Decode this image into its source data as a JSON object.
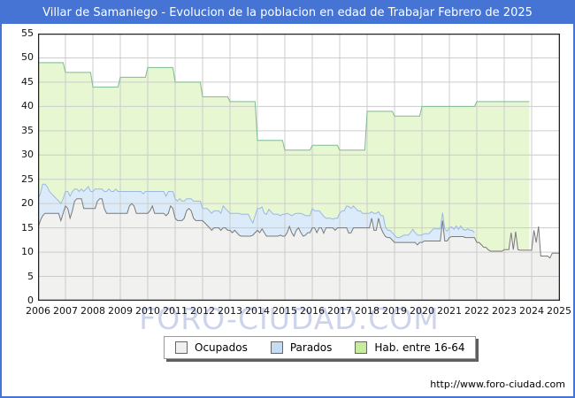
{
  "title": "Villar de Samaniego - Evolucion de la poblacion en edad de Trabajar Febrero de 2025",
  "watermark": "FORO-CIUDAD.COM",
  "footer_url": "http://www.foro-ciudad.com",
  "colors": {
    "frame_blue": "#4574d4",
    "grid": "#cccccc",
    "plot_border": "#222222",
    "ocupados_fill": "#f1f1ef",
    "ocupados_line": "#7a7a7a",
    "parados_fill": "#dcebf9",
    "parados_line": "#9bb8e6",
    "hab_fill": "#e7f7d2",
    "hab_line": "#7fbb93"
  },
  "legend": {
    "items": [
      {
        "label": "Ocupados",
        "color": "#f0f0f0"
      },
      {
        "label": "Parados",
        "color": "#c7dcf2"
      },
      {
        "label": "Hab. entre 16-64",
        "color": "#c6ec9c"
      }
    ]
  },
  "chart_data": {
    "type": "area",
    "title": "Villar de Samaniego - Evolucion de la poblacion en edad de Trabajar Febrero de 2025",
    "x_unit": "month",
    "x_range": [
      "2006-01",
      "2025-02"
    ],
    "ylim": [
      0,
      55
    ],
    "grid": true,
    "legend_position": "bottom",
    "y_ticks": [
      0,
      5,
      10,
      15,
      20,
      25,
      30,
      35,
      40,
      45,
      50,
      55
    ],
    "x_tick_labels": [
      "2006",
      "2007",
      "2008",
      "2009",
      "2010",
      "2011",
      "2012",
      "2013",
      "2014",
      "2015",
      "2016",
      "2017",
      "2018",
      "2019",
      "2020",
      "2021",
      "2022",
      "2023",
      "2024",
      "2025"
    ],
    "notes": "Parados values are the band height stacked on Ocupados; Hab. entre 16-64 is annual padron data ending Dec 2023",
    "series": [
      {
        "name": "Ocupados",
        "values_by_year": {
          "2006": [
            15,
            16.5,
            17.5,
            18,
            18,
            18,
            18,
            18,
            18,
            18,
            16.5,
            18
          ],
          "2007": [
            19.5,
            19,
            17,
            18.5,
            20.5,
            21,
            21,
            21,
            19,
            19,
            19,
            19
          ],
          "2008": [
            19,
            19,
            20.5,
            21,
            21,
            19,
            18,
            18,
            18,
            18,
            18,
            18
          ],
          "2009": [
            18,
            18,
            18,
            18,
            19.5,
            20,
            19.5,
            18,
            18,
            18,
            18,
            18
          ],
          "2010": [
            18,
            18.5,
            19.5,
            18,
            18,
            18,
            18,
            18,
            17.5,
            18,
            19.5,
            19
          ],
          "2011": [
            17,
            16.5,
            16.5,
            16.5,
            17,
            18.5,
            19,
            18.5,
            17,
            16.5,
            16.5,
            16.5
          ],
          "2012": [
            16.5,
            16,
            15.5,
            15,
            14.5,
            15,
            15,
            15,
            14.5,
            15,
            15,
            14.5
          ],
          "2013": [
            14.5,
            14,
            14.5,
            14,
            13.5,
            13.3,
            13.3,
            13.3,
            13.3,
            13.3,
            13.5,
            14
          ],
          "2014": [
            14.5,
            14,
            14.8,
            14,
            13.3,
            13.3,
            13.3,
            13.3,
            13.3,
            13.3,
            13.5,
            13.3
          ],
          "2015": [
            13.3,
            14,
            15.3,
            14,
            13.3,
            14.5,
            15,
            14,
            13.3,
            13.5,
            14,
            14
          ],
          "2016": [
            15,
            15,
            14,
            15,
            15,
            13.9,
            15,
            15,
            15,
            15,
            14.5,
            15
          ],
          "2017": [
            15,
            15,
            15,
            15,
            13.9,
            14,
            15,
            15,
            15,
            15,
            15,
            15
          ],
          "2018": [
            15,
            15,
            17,
            14.5,
            14.5,
            17,
            15,
            14,
            13.2,
            13,
            13,
            12.5
          ],
          "2019": [
            12,
            12,
            12,
            12,
            12,
            12,
            12,
            12,
            12,
            12,
            11.5,
            12
          ],
          "2020": [
            12,
            12.3,
            12.3,
            12.3,
            12.3,
            12.3,
            12.3,
            12.3,
            12.3,
            16.5,
            12.3,
            12.3
          ],
          "2021": [
            13,
            13.2,
            13.2,
            13.2,
            13.2,
            13.2,
            13.2,
            13,
            13,
            13,
            13,
            13
          ],
          "2022": [
            12,
            12,
            11.5,
            11,
            11,
            10.5,
            10.2,
            10.2,
            10.2,
            10.2,
            10.2,
            10.2
          ],
          "2023": [
            10.5,
            10.5,
            10.5,
            14,
            10.5,
            14.2,
            10.5,
            10.4,
            10.4,
            10.4,
            10.4,
            10.4
          ],
          "2024": [
            10.4,
            14.5,
            12,
            15.3,
            9.2,
            9.2,
            9.2,
            9.2,
            8.8,
            9.8,
            9.8,
            9.8
          ],
          "2025": [
            9.8,
            9.5
          ]
        }
      },
      {
        "name": "Parados",
        "values_by_year": {
          "2006": [
            6,
            5.5,
            6.5,
            6,
            5.5,
            4.5,
            4,
            3.5,
            3,
            2.5,
            3.5,
            3
          ],
          "2007": [
            3,
            3.5,
            4.5,
            4,
            2.5,
            2,
            1.5,
            2,
            3.5,
            4,
            4.5,
            3.5
          ],
          "2008": [
            3.5,
            4,
            2.5,
            2,
            2,
            3.5,
            4.5,
            5,
            4.5,
            4.5,
            5,
            4.5
          ],
          "2009": [
            4.5,
            4.5,
            4.5,
            4.5,
            3,
            2.5,
            3,
            4.5,
            4.5,
            4.5,
            4,
            4.5
          ],
          "2010": [
            4.5,
            4,
            3,
            4.5,
            4.5,
            4.5,
            4.5,
            4.5,
            4,
            4.5,
            3,
            3.5
          ],
          "2011": [
            4,
            4,
            4.5,
            4,
            3.5,
            2.5,
            2,
            2.5,
            3.5,
            4,
            4,
            4
          ],
          "2012": [
            2.5,
            3,
            3.5,
            3.5,
            3.5,
            3.5,
            3.5,
            3.5,
            3.5,
            4.5,
            4,
            4
          ],
          "2013": [
            3.5,
            4,
            3.5,
            4,
            4.5,
            4.5,
            4.5,
            4.5,
            4.5,
            3.5,
            2.5,
            3.5
          ],
          "2014": [
            4.5,
            5,
            4.5,
            4,
            4.5,
            5.5,
            5,
            4.5,
            4.5,
            4.5,
            4,
            4.5
          ],
          "2015": [
            4.5,
            4,
            2.5,
            3.5,
            4.5,
            3.5,
            3,
            4,
            4.5,
            4,
            3.5,
            3.5
          ],
          "2016": [
            4,
            3.5,
            4.5,
            3.5,
            3,
            3.5,
            2,
            2,
            2,
            1.8,
            2.5,
            2
          ],
          "2017": [
            3,
            3.5,
            3.5,
            4.5,
            5.5,
            5,
            4.5,
            4,
            3.5,
            3.5,
            3,
            3
          ],
          "2018": [
            3,
            3,
            1.3,
            3.5,
            3.5,
            1.3,
            2.5,
            3.5,
            2,
            1.5,
            1.5,
            1.5
          ],
          "2019": [
            1.5,
            1,
            1,
            1.2,
            1.5,
            1.5,
            1.5,
            2,
            2.7,
            2,
            2,
            1.5
          ],
          "2020": [
            1.5,
            1.5,
            1.5,
            1.5,
            2,
            2.5,
            2.5,
            2.5,
            2.5,
            1.6,
            2.5,
            2
          ],
          "2021": [
            2,
            2,
            1.5,
            2.2,
            1.5,
            2.2,
            1.5,
            1.5,
            1.8,
            1.5,
            1.5,
            1
          ],
          "2022": [
            0,
            0,
            0,
            0,
            0,
            0,
            0,
            0,
            0,
            0,
            0,
            0
          ],
          "2023": [
            0,
            0,
            0,
            0,
            0,
            0,
            0,
            0,
            0,
            0,
            0,
            0
          ],
          "2024": [
            0,
            0,
            0,
            0,
            0,
            0,
            0,
            0,
            0,
            0,
            0,
            0
          ],
          "2025": [
            0,
            0
          ]
        }
      },
      {
        "name": "Hab. entre 16-64",
        "values_by_year": {
          "2006": 49,
          "2007": 47,
          "2008": 44,
          "2009": 46,
          "2010": 48,
          "2011": 45,
          "2012": 42,
          "2013": 41,
          "2014": 33,
          "2015": 31,
          "2016": 32,
          "2017": 31,
          "2018": 39,
          "2019": 38,
          "2020": 40,
          "2021": 40,
          "2022": 41,
          "2023": 41,
          "2024": null,
          "2025": null
        }
      }
    ]
  }
}
